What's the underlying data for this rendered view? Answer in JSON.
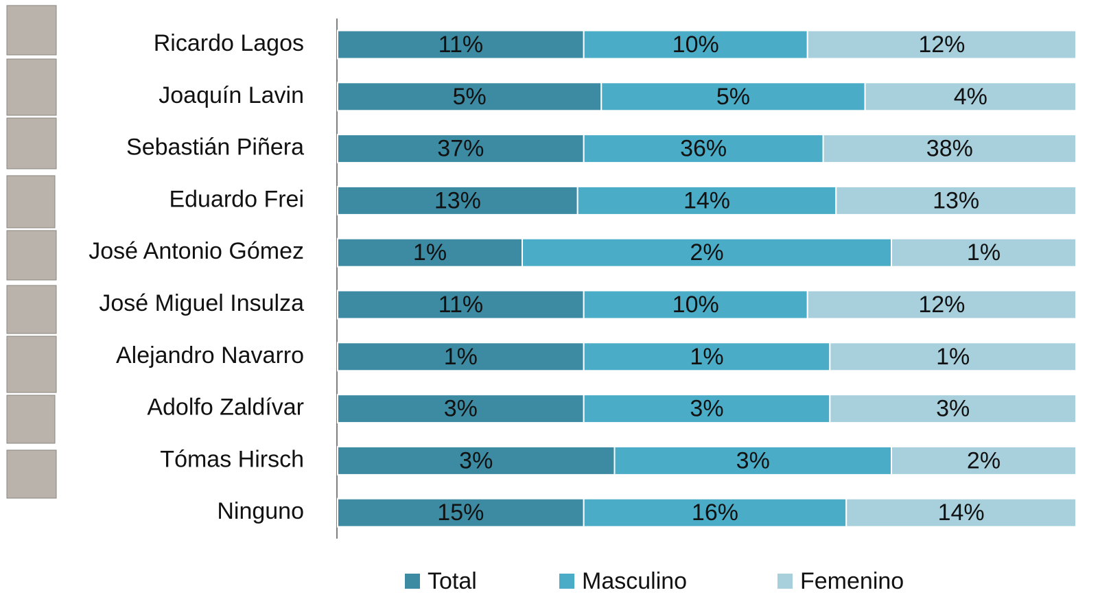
{
  "chart_data": {
    "type": "bar",
    "stacked": "percent",
    "orientation": "horizontal",
    "categories": [
      "Ricardo Lagos",
      "Joaquín Lavin",
      "Sebastián Piñera",
      "Eduardo Frei",
      "José Antonio Gómez",
      "José Miguel Insulza",
      "Alejandro Navarro",
      "Adolfo Zaldívar",
      "Tómas Hirsch",
      "Ninguno"
    ],
    "series": [
      {
        "name": "Total",
        "color": "#3d8ba3",
        "values": [
          11,
          5,
          37,
          13,
          1,
          11,
          1,
          3,
          3,
          15
        ],
        "value_labels": [
          "11%",
          "5%",
          "37%",
          "13%",
          "1%",
          "11%",
          "1%",
          "3%",
          "3%",
          "15%"
        ]
      },
      {
        "name": "Masculino",
        "color": "#4aacc6",
        "values": [
          10,
          5,
          36,
          14,
          2,
          10,
          1,
          3,
          3,
          16
        ],
        "value_labels": [
          "10%",
          "5%",
          "36%",
          "14%",
          "2%",
          "10%",
          "1%",
          "3%",
          "3%",
          "16%"
        ]
      },
      {
        "name": "Femenino",
        "color": "#a8cfdc",
        "values": [
          12,
          4,
          38,
          13,
          1,
          12,
          1,
          3,
          2,
          14
        ],
        "value_labels": [
          "12%",
          "4%",
          "38%",
          "13%",
          "1%",
          "12%",
          "1%",
          "3%",
          "2%",
          "14%"
        ]
      }
    ],
    "legend": "bottom"
  }
}
